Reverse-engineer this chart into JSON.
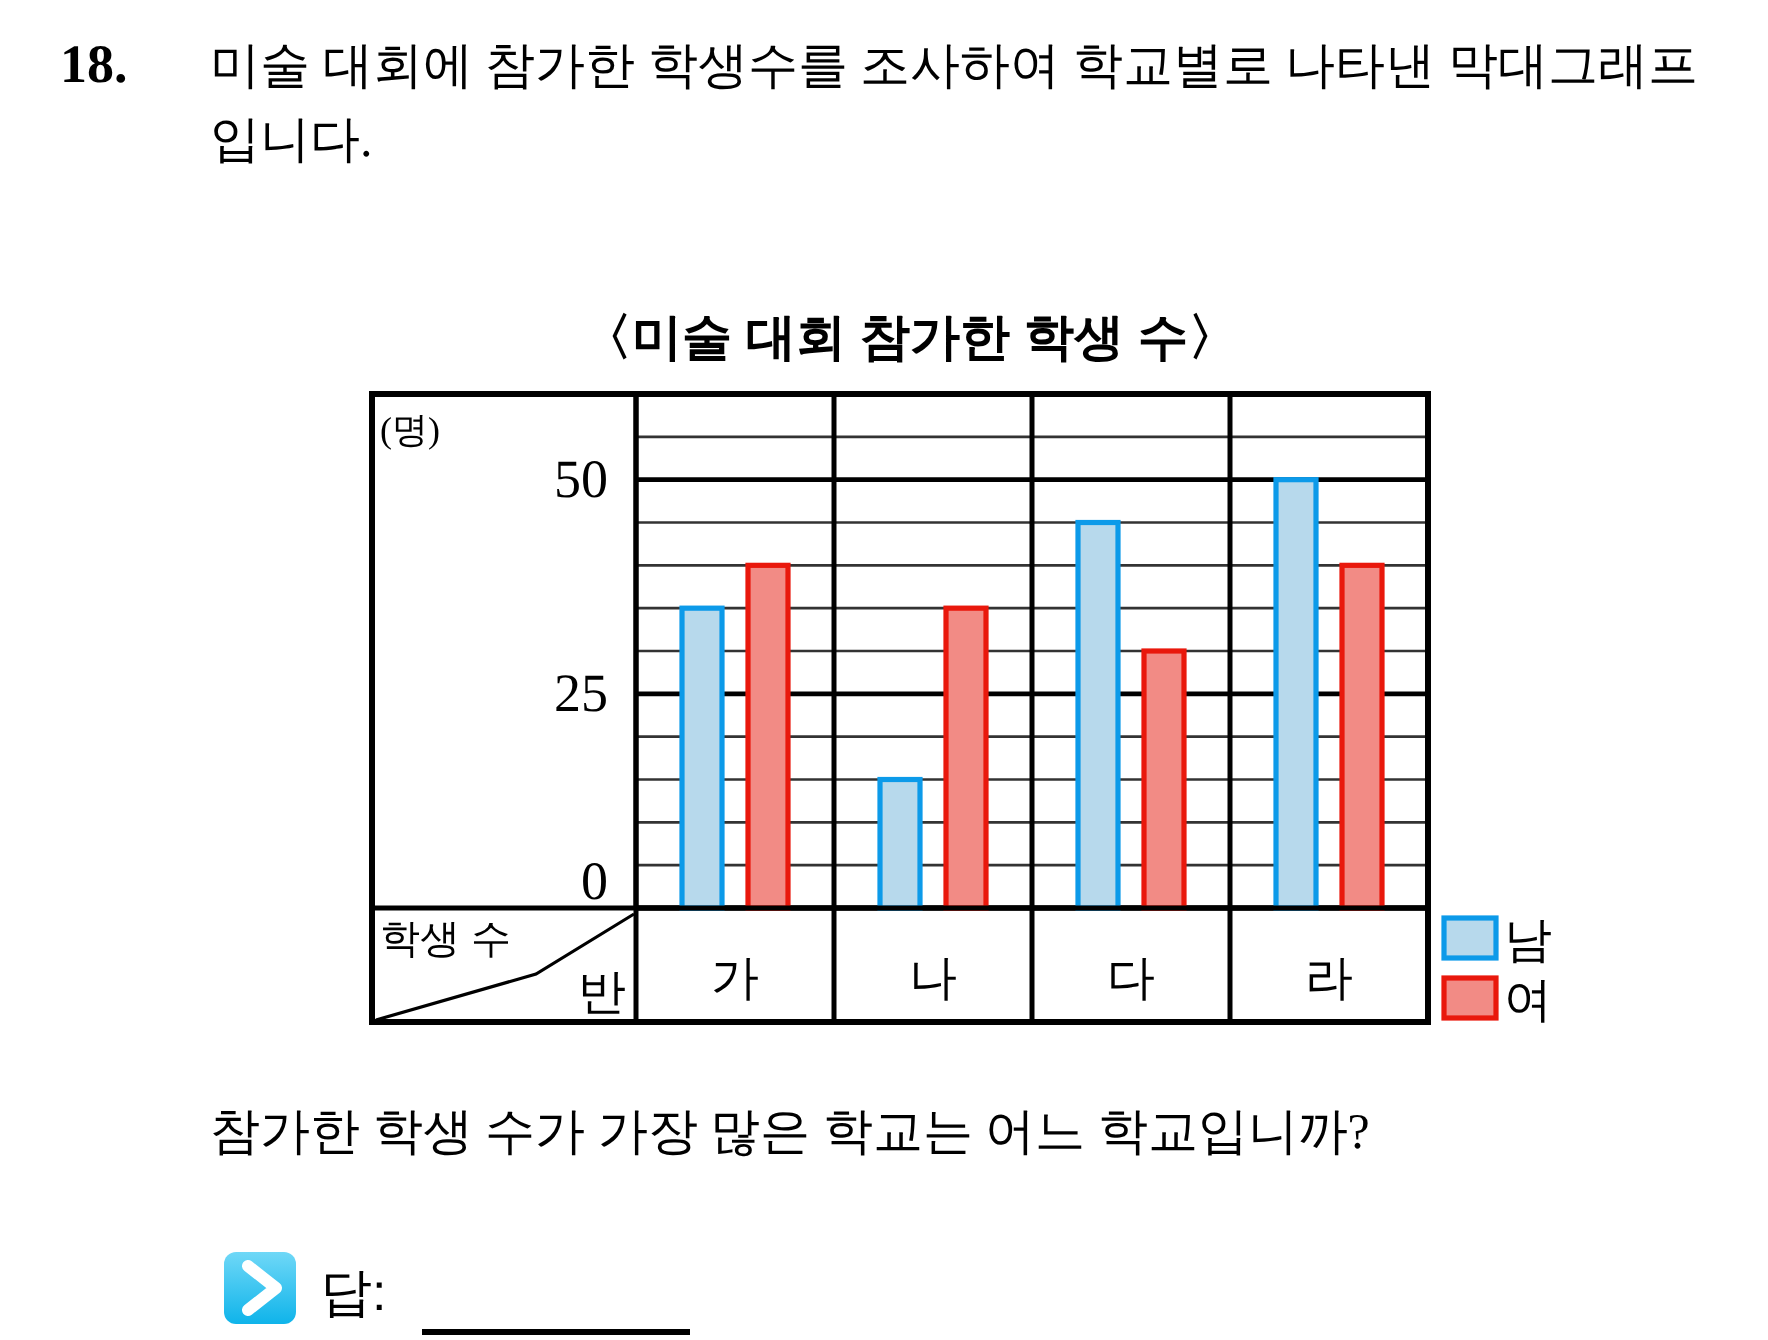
{
  "chart_data": {
    "type": "bar",
    "title": "〈미술 대회 참가한 학생 수〉",
    "xlabel": "반",
    "ylabel": "학생 수",
    "categories": [
      "가",
      "나",
      "다",
      "라"
    ],
    "series": [
      {
        "name": "남",
        "color": "#b7d9ec",
        "values": [
          35,
          15,
          45,
          50
        ]
      },
      {
        "name": "여",
        "color": "#f28b85",
        "values": [
          40,
          35,
          30,
          40
        ]
      }
    ],
    "ylim": [
      0,
      60
    ],
    "yticks": [
      0,
      {
        "value": 5,
        "label": null
      },
      {
        "value": 10,
        "label": null
      },
      {
        "value": 15,
        "label": null
      },
      {
        "value": 20,
        "label": null
      },
      25,
      {
        "value": 30,
        "label": null
      },
      {
        "value": 35,
        "label": null
      },
      {
        "value": 40,
        "label": null
      },
      {
        "value": 45,
        "label": null
      },
      50,
      {
        "value": 55,
        "label": null
      }
    ],
    "grid": "y",
    "legend": "bottom right",
    "annotations": [
      "18.",
      "미술 대회에 참가한 학생수를 조사하여 학교별로 나타낸 막대그래프입니다.",
      "(명)",
      "참가한 학생 수가 가장 많은 학교는 어느 학교입니까?",
      "답:"
    ]
  }
}
